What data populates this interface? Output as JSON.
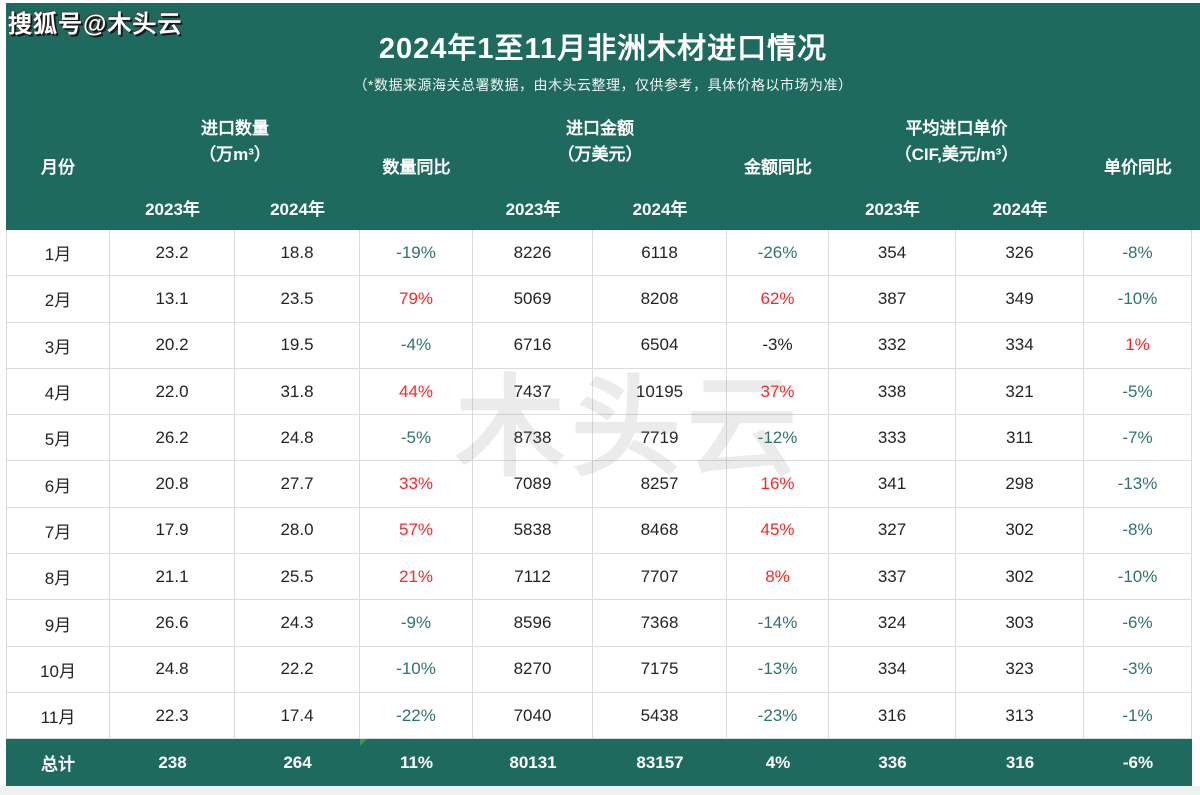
{
  "page": {
    "brand": "搜狐号@木头云",
    "title": "2024年1至11月非洲木材进口情况",
    "subtitle": "（*数据来源海关总署数据，由木头云整理，仅供参考，具体价格以市场为准）",
    "watermark": "木头云"
  },
  "colors": {
    "band_green": "#1E6A5E",
    "total_row_green": "#1E6A5E",
    "yoy_up_red": "#F42A2A",
    "yoy_down_teal": "#2E746B",
    "body_text": "#242424",
    "grid_line": "#DBDBDB",
    "comment_flag_green": "#2F9E4E"
  },
  "table": {
    "headers": {
      "month": "月份",
      "qty_group": "进口数量",
      "qty_unit": "（万m³）",
      "qty_yoy": "数量同比",
      "amt_group": "进口金额",
      "amt_unit": "（万美元）",
      "amt_yoy": "金额同比",
      "price_group": "平均进口单价",
      "price_unit": "（CIF,美元/m³）",
      "price_yoy": "单价同比",
      "year_2023": "2023年",
      "year_2024": "2024年"
    },
    "rows": [
      {
        "month": "1月",
        "qty_2023": "23.2",
        "qty_2024": "18.8",
        "qty_yoy": "-19%",
        "qty_trend": "down",
        "amt_2023": "8226",
        "amt_2024": "6118",
        "amt_yoy": "-26%",
        "amt_trend": "down",
        "price_2023": "354",
        "price_2024": "326",
        "price_yoy": "-8%",
        "price_trend": "down"
      },
      {
        "month": "2月",
        "qty_2023": "13.1",
        "qty_2024": "23.5",
        "qty_yoy": "79%",
        "qty_trend": "up",
        "amt_2023": "5069",
        "amt_2024": "8208",
        "amt_yoy": "62%",
        "amt_trend": "up",
        "price_2023": "387",
        "price_2024": "349",
        "price_yoy": "-10%",
        "price_trend": "down"
      },
      {
        "month": "3月",
        "qty_2023": "20.2",
        "qty_2024": "19.5",
        "qty_yoy": "-4%",
        "qty_trend": "down",
        "amt_2023": "6716",
        "amt_2024": "6504",
        "amt_yoy": "-3%",
        "amt_trend": "flat",
        "price_2023": "332",
        "price_2024": "334",
        "price_yoy": "1%",
        "price_trend": "up"
      },
      {
        "month": "4月",
        "qty_2023": "22.0",
        "qty_2024": "31.8",
        "qty_yoy": "44%",
        "qty_trend": "up",
        "amt_2023": "7437",
        "amt_2024": "10195",
        "amt_yoy": "37%",
        "amt_trend": "up",
        "price_2023": "338",
        "price_2024": "321",
        "price_yoy": "-5%",
        "price_trend": "down"
      },
      {
        "month": "5月",
        "qty_2023": "26.2",
        "qty_2024": "24.8",
        "qty_yoy": "-5%",
        "qty_trend": "down",
        "amt_2023": "8738",
        "amt_2024": "7719",
        "amt_yoy": "-12%",
        "amt_trend": "down",
        "price_2023": "333",
        "price_2024": "311",
        "price_yoy": "-7%",
        "price_trend": "down"
      },
      {
        "month": "6月",
        "qty_2023": "20.8",
        "qty_2024": "27.7",
        "qty_yoy": "33%",
        "qty_trend": "up",
        "amt_2023": "7089",
        "amt_2024": "8257",
        "amt_yoy": "16%",
        "amt_trend": "up",
        "price_2023": "341",
        "price_2024": "298",
        "price_yoy": "-13%",
        "price_trend": "down"
      },
      {
        "month": "7月",
        "qty_2023": "17.9",
        "qty_2024": "28.0",
        "qty_yoy": "57%",
        "qty_trend": "up",
        "amt_2023": "5838",
        "amt_2024": "8468",
        "amt_yoy": "45%",
        "amt_trend": "up",
        "price_2023": "327",
        "price_2024": "302",
        "price_yoy": "-8%",
        "price_trend": "down"
      },
      {
        "month": "8月",
        "qty_2023": "21.1",
        "qty_2024": "25.5",
        "qty_yoy": "21%",
        "qty_trend": "up",
        "amt_2023": "7112",
        "amt_2024": "7707",
        "amt_yoy": "8%",
        "amt_trend": "up",
        "price_2023": "337",
        "price_2024": "302",
        "price_yoy": "-10%",
        "price_trend": "down"
      },
      {
        "month": "9月",
        "qty_2023": "26.6",
        "qty_2024": "24.3",
        "qty_yoy": "-9%",
        "qty_trend": "down",
        "amt_2023": "8596",
        "amt_2024": "7368",
        "amt_yoy": "-14%",
        "amt_trend": "down",
        "price_2023": "324",
        "price_2024": "303",
        "price_yoy": "-6%",
        "price_trend": "down"
      },
      {
        "month": "10月",
        "qty_2023": "24.8",
        "qty_2024": "22.2",
        "qty_yoy": "-10%",
        "qty_trend": "down",
        "amt_2023": "8270",
        "amt_2024": "7175",
        "amt_yoy": "-13%",
        "amt_trend": "down",
        "price_2023": "334",
        "price_2024": "323",
        "price_yoy": "-3%",
        "price_trend": "down"
      },
      {
        "month": "11月",
        "qty_2023": "22.3",
        "qty_2024": "17.4",
        "qty_yoy": "-22%",
        "qty_trend": "down",
        "amt_2023": "7040",
        "amt_2024": "5438",
        "amt_yoy": "-23%",
        "amt_trend": "down",
        "price_2023": "316",
        "price_2024": "313",
        "price_yoy": "-1%",
        "price_trend": "down"
      }
    ],
    "total": {
      "month": "总计",
      "qty_2023": "238",
      "qty_2024": "264",
      "qty_yoy": "11%",
      "amt_2023": "80131",
      "amt_2024": "83157",
      "amt_yoy": "4%",
      "price_2023": "336",
      "price_2024": "316",
      "price_yoy": "-6%"
    }
  },
  "chart_data": {
    "type": "table",
    "title": "2024年1至11月非洲木材进口情况",
    "subtitle": "（*数据来源海关总署数据，由木头云整理，仅供参考，具体价格以市场为准）",
    "categories": [
      "1月",
      "2月",
      "3月",
      "4月",
      "5月",
      "6月",
      "7月",
      "8月",
      "9月",
      "10月",
      "11月",
      "总计"
    ],
    "series": [
      {
        "name": "进口数量 2023年（万m³）",
        "values": [
          23.2,
          13.1,
          20.2,
          22.0,
          26.2,
          20.8,
          17.9,
          21.1,
          26.6,
          24.8,
          22.3,
          238
        ]
      },
      {
        "name": "进口数量 2024年（万m³）",
        "values": [
          18.8,
          23.5,
          19.5,
          31.8,
          24.8,
          27.7,
          28.0,
          25.5,
          24.3,
          22.2,
          17.4,
          264
        ]
      },
      {
        "name": "数量同比",
        "values": [
          "-19%",
          "79%",
          "-4%",
          "44%",
          "-5%",
          "33%",
          "57%",
          "21%",
          "-9%",
          "-10%",
          "-22%",
          "11%"
        ]
      },
      {
        "name": "进口金额 2023年（万美元）",
        "values": [
          8226,
          5069,
          6716,
          7437,
          8738,
          7089,
          5838,
          7112,
          8596,
          8270,
          7040,
          80131
        ]
      },
      {
        "name": "进口金额 2024年（万美元）",
        "values": [
          6118,
          8208,
          6504,
          10195,
          7719,
          8257,
          8468,
          7707,
          7368,
          7175,
          5438,
          83157
        ]
      },
      {
        "name": "金额同比",
        "values": [
          "-26%",
          "62%",
          "-3%",
          "37%",
          "-12%",
          "16%",
          "45%",
          "8%",
          "-14%",
          "-13%",
          "-23%",
          "4%"
        ]
      },
      {
        "name": "平均进口单价 2023年（CIF,美元/m³）",
        "values": [
          354,
          387,
          332,
          338,
          333,
          341,
          327,
          337,
          324,
          334,
          316,
          336
        ]
      },
      {
        "name": "平均进口单价 2024年（CIF,美元/m³）",
        "values": [
          326,
          349,
          334,
          321,
          311,
          298,
          302,
          302,
          303,
          323,
          313,
          316
        ]
      },
      {
        "name": "单价同比",
        "values": [
          "-8%",
          "-10%",
          "1%",
          "-5%",
          "-7%",
          "-13%",
          "-8%",
          "-10%",
          "-6%",
          "-3%",
          "-1%",
          "-6%"
        ]
      }
    ],
    "legend_position": "none",
    "grid": true
  }
}
